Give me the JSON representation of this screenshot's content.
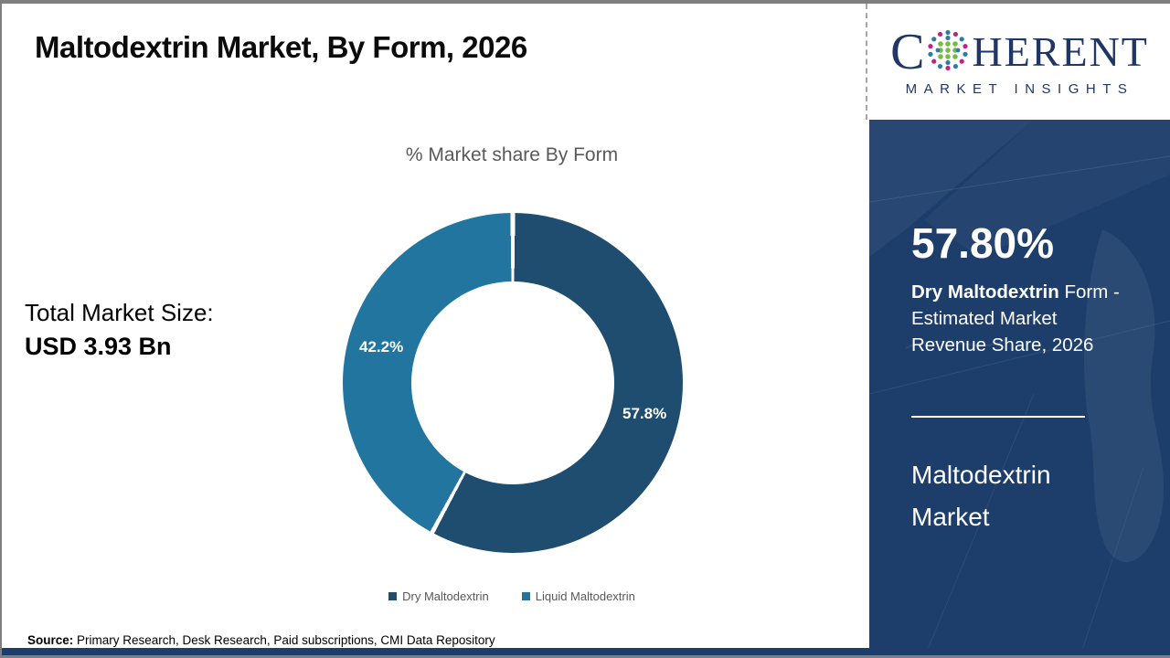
{
  "slide": {
    "title": "Maltodextrin Market, By Form, 2026"
  },
  "logo": {
    "word_c": "C",
    "word_rest": "HERENT",
    "tagline": "MARKET INSIGHTS",
    "navy": "#1f3666",
    "dot_green": "#76bc43",
    "dot_magenta": "#c2247e",
    "dot_teal": "#2e7ca3"
  },
  "stats_left": {
    "label": "Total Market Size:",
    "value": "USD 3.93 Bn"
  },
  "chart_data": {
    "type": "pie",
    "donut": true,
    "title": "% Market share By Form",
    "categories": [
      "Dry Maltodextrin",
      "Liquid Maltodextrin"
    ],
    "values": [
      57.8,
      42.2
    ],
    "slice_labels": [
      "57.8%",
      "42.2%"
    ],
    "colors": [
      "#1e4d6f",
      "#21759f"
    ],
    "start_angle_deg": 0,
    "direction": "clockwise",
    "legend_position": "bottom",
    "label_color": "#ffffff"
  },
  "sidebar": {
    "bg_color": "#1d3e6b",
    "stat_value": "57.80%",
    "desc_bold": "Dry Maltodextrin",
    "desc_line1_rest": " Form -",
    "desc_line2": "Estimated Market",
    "desc_line3": "Revenue Share, 2026",
    "market_line1": "Maltodextrin",
    "market_line2": "Market"
  },
  "footer": {
    "source_label": "Source:",
    "source_text": " Primary Research, Desk Research, Paid subscriptions, CMI Data Repository"
  }
}
